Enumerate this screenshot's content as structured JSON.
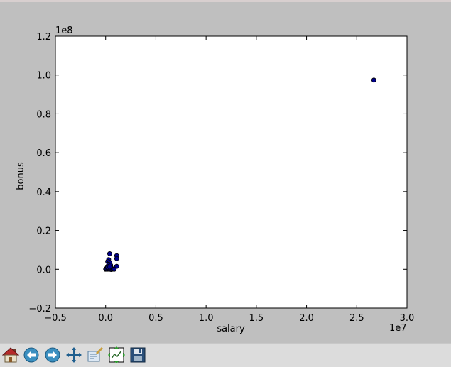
{
  "colors": {
    "figure_bg": "#bfbfbf",
    "axes_bg": "#ffffff",
    "marker_fill": "#00008b",
    "toolbar_bg": "#dcdcdc"
  },
  "toolbar": {
    "buttons": [
      {
        "name": "home-icon"
      },
      {
        "name": "back-arrow-icon"
      },
      {
        "name": "forward-arrow-icon"
      },
      {
        "name": "pan-move-icon"
      },
      {
        "name": "zoom-rect-icon"
      },
      {
        "name": "subplots-config-icon"
      },
      {
        "name": "save-disk-icon"
      }
    ]
  },
  "chart_data": {
    "type": "scatter",
    "title": "",
    "xlabel": "salary",
    "ylabel": "bonus",
    "x_offset_label": "1e7",
    "y_offset_label": "1e8",
    "xlim": [
      -0.5,
      3.0
    ],
    "ylim": [
      -0.2,
      1.2
    ],
    "x_ticks": [
      "−0.5",
      "0.0",
      "0.5",
      "1.0",
      "1.5",
      "2.0",
      "2.5",
      "3.0"
    ],
    "y_ticks": [
      "−0.2",
      "0.0",
      "0.2",
      "0.4",
      "0.6",
      "0.8",
      "1.0",
      "1.2"
    ],
    "grid": false,
    "legend": "none",
    "series": [
      {
        "points": [
          {
            "x": 2.67,
            "y": 0.974
          },
          {
            "x": 0.04,
            "y": 0.08
          },
          {
            "x": 0.11,
            "y": 0.07
          },
          {
            "x": 0.11,
            "y": 0.055
          },
          {
            "x": 0.03,
            "y": 0.05
          },
          {
            "x": 0.02,
            "y": 0.04
          },
          {
            "x": 0.04,
            "y": 0.035
          },
          {
            "x": 0.03,
            "y": 0.025
          },
          {
            "x": 0.05,
            "y": 0.02
          },
          {
            "x": 0.11,
            "y": 0.015
          },
          {
            "x": 0.02,
            "y": 0.015
          },
          {
            "x": 0.035,
            "y": 0.01
          },
          {
            "x": 0.055,
            "y": 0.008
          },
          {
            "x": 0.01,
            "y": 0.006
          },
          {
            "x": 0.025,
            "y": 0.004
          },
          {
            "x": 0.045,
            "y": 0.003
          },
          {
            "x": 0.06,
            "y": 0.002
          },
          {
            "x": 0.0,
            "y": 0.0
          },
          {
            "x": 0.005,
            "y": 0.001
          },
          {
            "x": 0.015,
            "y": 0.0
          },
          {
            "x": 0.025,
            "y": 0.001
          },
          {
            "x": 0.035,
            "y": 0.0
          },
          {
            "x": 0.045,
            "y": 0.0
          },
          {
            "x": 0.055,
            "y": -0.001
          },
          {
            "x": 0.065,
            "y": 0.0
          },
          {
            "x": 0.075,
            "y": 0.001
          },
          {
            "x": 0.085,
            "y": 0.0
          },
          {
            "x": 0.03,
            "y": 0.006
          },
          {
            "x": 0.02,
            "y": 0.01
          },
          {
            "x": 0.04,
            "y": 0.012
          }
        ]
      }
    ]
  }
}
